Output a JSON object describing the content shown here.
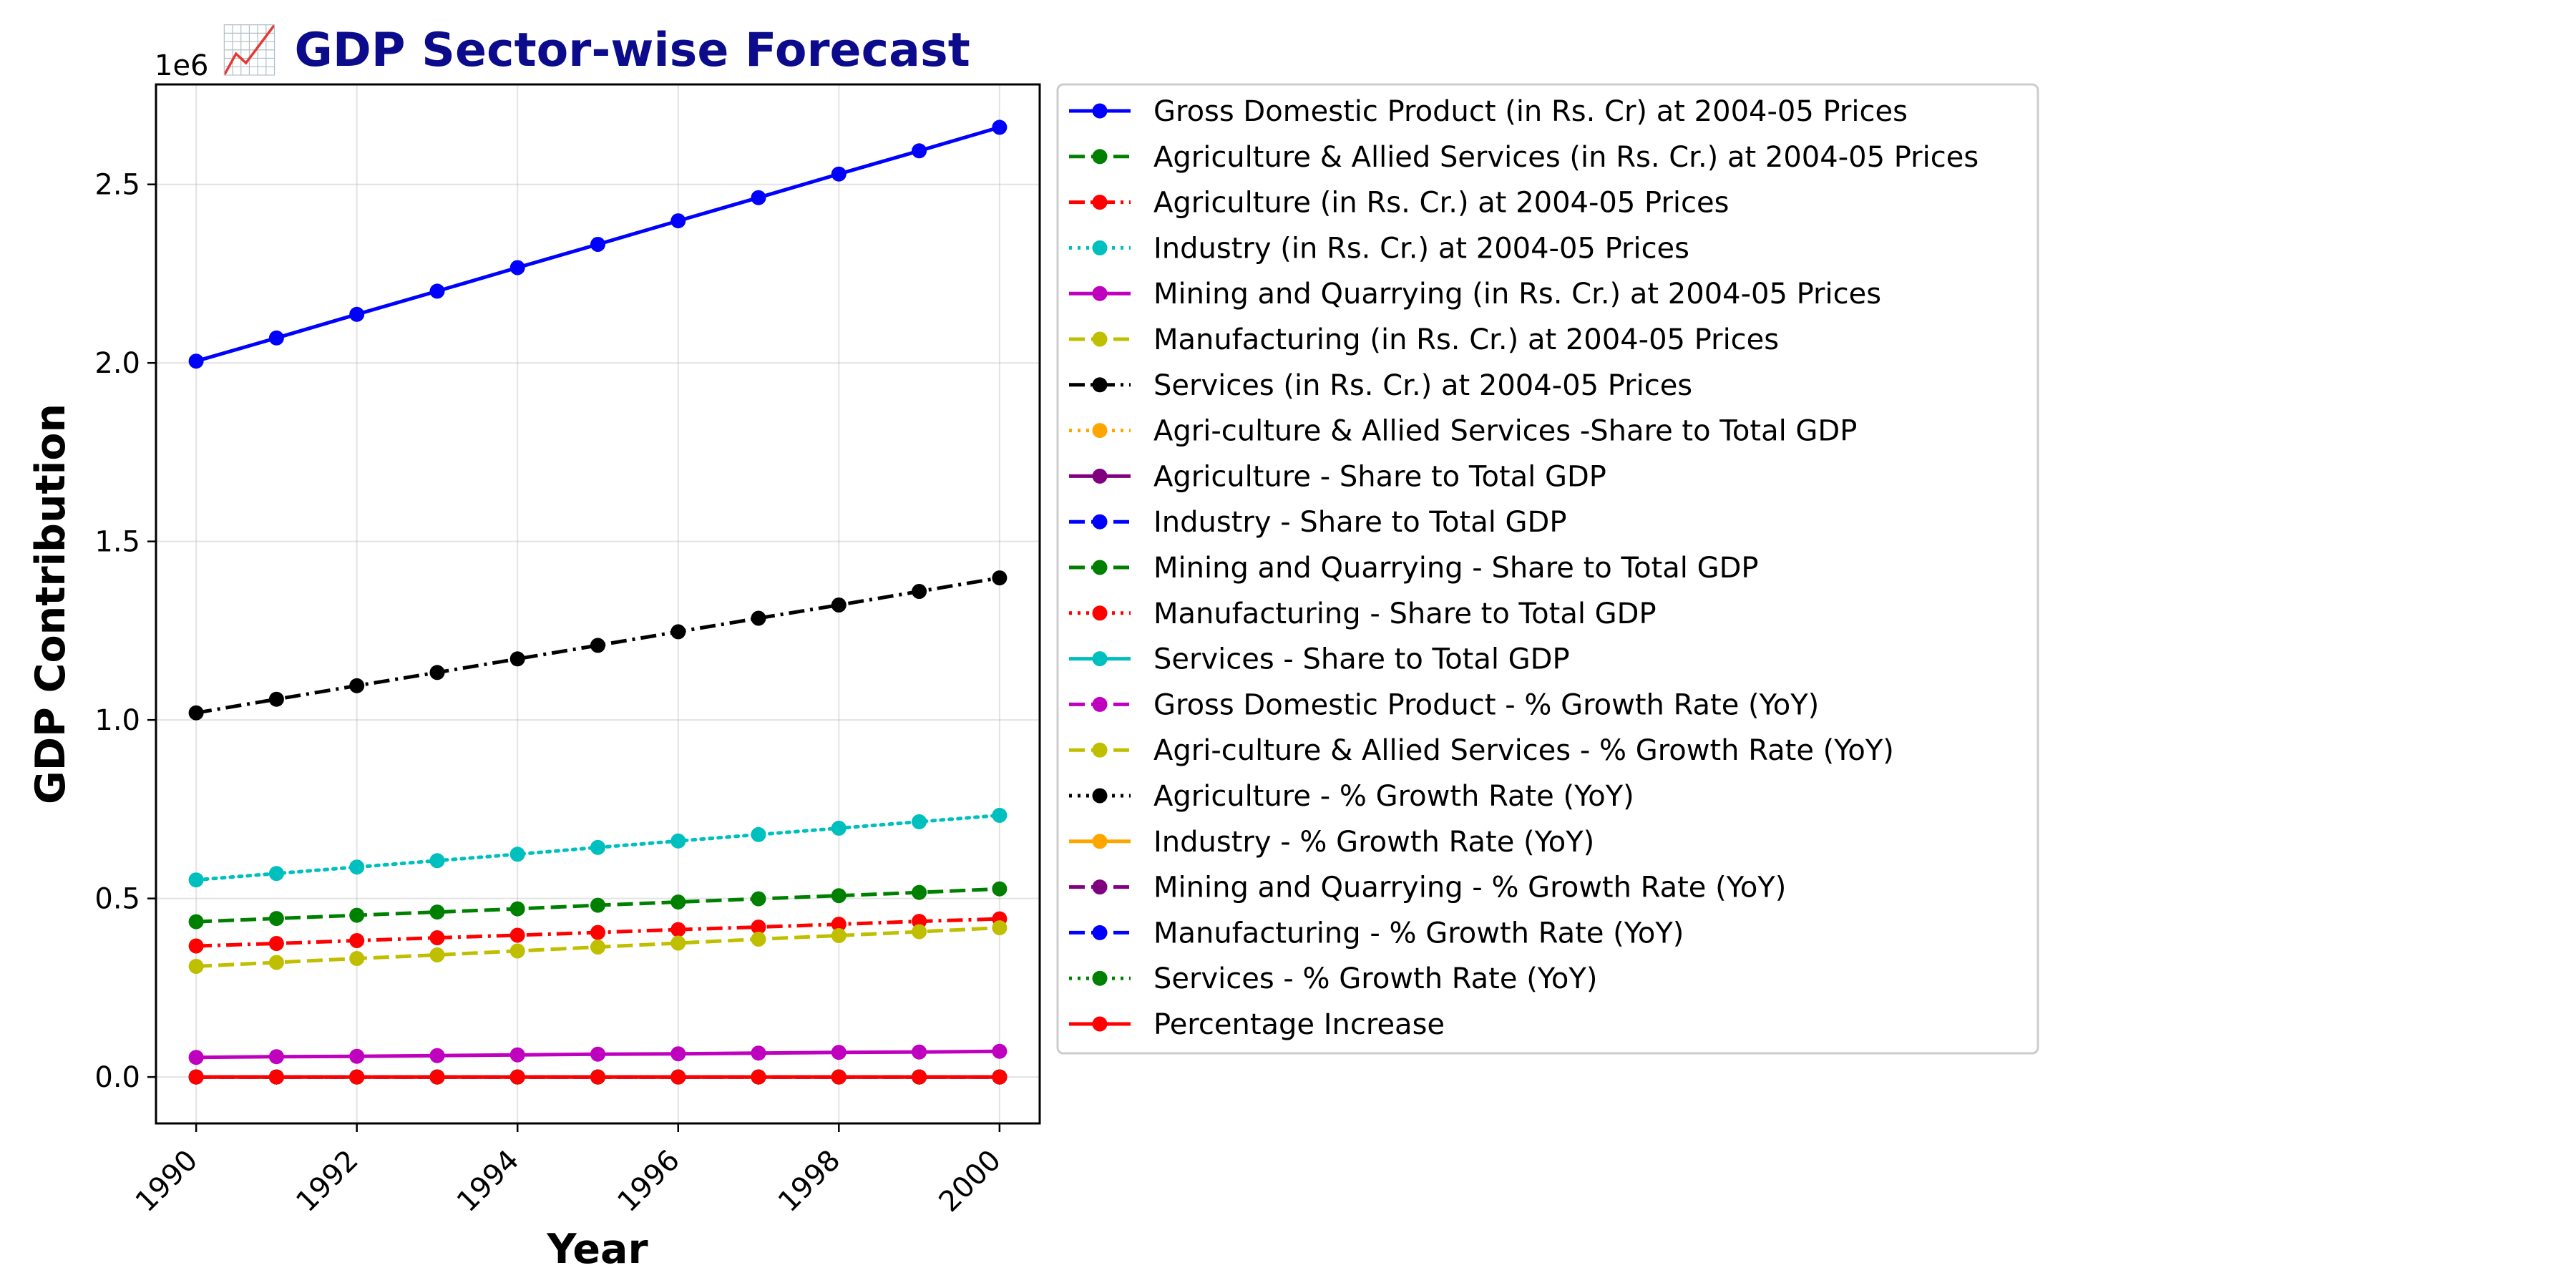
{
  "chart_data": {
    "type": "line",
    "title": "📈 GDP Sector-wise Forecast",
    "title_color": "#0b0b8c",
    "xlabel": "Year",
    "ylabel": "GDP Contribution",
    "y_offset_label": "1e6",
    "y_scale": 1000000,
    "xlim": [
      1989.5,
      2000.5
    ],
    "ylim": [
      -0.13,
      2.78
    ],
    "x_ticks": [
      1990,
      1992,
      1994,
      1996,
      1998,
      2000
    ],
    "y_ticks": [
      "0.0",
      "0.5",
      "1.0",
      "1.5",
      "2.0",
      "2.5"
    ],
    "grid": true,
    "legend_position": "outside right, upper",
    "x": [
      1990,
      1991,
      1992,
      1993,
      1994,
      1995,
      1996,
      1997,
      1998,
      1999,
      2000
    ],
    "series": [
      {
        "name": "Gross Domestic Product (in Rs. Cr) at 2004-05 Prices",
        "color": "#0000ff",
        "linestyle": "solid",
        "values": [
          2005000,
          2070000,
          2136000,
          2201000,
          2267000,
          2332000,
          2398000,
          2463000,
          2529000,
          2594000,
          2660000
        ]
      },
      {
        "name": "Agriculture & Allied Services (in Rs. Cr.) at 2004-05 Prices",
        "color": "#008000",
        "linestyle": "dashed",
        "values": [
          435000,
          444000,
          453000,
          462000,
          471000,
          481000,
          490000,
          499000,
          508000,
          517000,
          527000
        ]
      },
      {
        "name": "Agriculture (in Rs. Cr.) at 2004-05 Prices",
        "color": "#ff0000",
        "linestyle": "dashdot",
        "values": [
          367000,
          374000,
          382000,
          390000,
          397000,
          405000,
          413000,
          420000,
          428000,
          436000,
          443000
        ]
      },
      {
        "name": "Industry (in Rs. Cr.) at 2004-05 Prices",
        "color": "#00bfbf",
        "linestyle": "dotted",
        "values": [
          552000,
          570000,
          588000,
          606000,
          624000,
          643000,
          661000,
          679000,
          697000,
          715000,
          733000
        ]
      },
      {
        "name": "Mining and Quarrying (in Rs. Cr.) at 2004-05 Prices",
        "color": "#bf00bf",
        "linestyle": "solid",
        "values": [
          55000,
          57000,
          58000,
          60000,
          62000,
          64000,
          65000,
          67000,
          69000,
          70000,
          72000
        ]
      },
      {
        "name": "Manufacturing (in Rs. Cr.) at 2004-05 Prices",
        "color": "#bfbf00",
        "linestyle": "dashed",
        "values": [
          310000,
          321000,
          332000,
          342000,
          353000,
          364000,
          375000,
          386000,
          396000,
          407000,
          418000
        ]
      },
      {
        "name": "Services (in Rs. Cr.) at 2004-05 Prices",
        "color": "#000000",
        "linestyle": "dashdot",
        "values": [
          1020000,
          1058000,
          1096000,
          1133000,
          1171000,
          1209000,
          1247000,
          1285000,
          1322000,
          1360000,
          1398000
        ]
      },
      {
        "name": "Agri-culture & Allied Services -Share to Total GDP",
        "color": "#ffa500",
        "linestyle": "dotted",
        "values": [
          21,
          21,
          21,
          21,
          21,
          21,
          21,
          21,
          20,
          20,
          20
        ]
      },
      {
        "name": "Agriculture - Share to Total GDP",
        "color": "#800080",
        "linestyle": "solid",
        "values": [
          18,
          18,
          18,
          18,
          18,
          17,
          17,
          17,
          17,
          17,
          17
        ]
      },
      {
        "name": "Industry - Share to Total GDP",
        "color": "#0000ff",
        "linestyle": "dashed",
        "values": [
          28,
          28,
          28,
          28,
          28,
          28,
          28,
          28,
          28,
          28,
          28
        ]
      },
      {
        "name": "Mining and Quarrying - Share to Total GDP",
        "color": "#008000",
        "linestyle": "dashed",
        "values": [
          3,
          3,
          3,
          3,
          3,
          3,
          3,
          3,
          3,
          3,
          3
        ]
      },
      {
        "name": "Manufacturing - Share to Total GDP",
        "color": "#ff0000",
        "linestyle": "dotted",
        "values": [
          15,
          15,
          15,
          16,
          16,
          16,
          16,
          16,
          16,
          16,
          16
        ]
      },
      {
        "name": "Services - Share to Total GDP",
        "color": "#00bfbf",
        "linestyle": "solid",
        "values": [
          51,
          51,
          51,
          51,
          52,
          52,
          52,
          52,
          52,
          52,
          53
        ]
      },
      {
        "name": "Gross Domestic Product - % Growth Rate (YoY)",
        "color": "#bf00bf",
        "linestyle": "dashed",
        "values": [
          3,
          3,
          3,
          3,
          3,
          3,
          3,
          3,
          3,
          3,
          3
        ]
      },
      {
        "name": "Agri-culture & Allied Services - % Growth Rate (YoY)",
        "color": "#bfbf00",
        "linestyle": "dashed",
        "values": [
          2,
          2,
          2,
          2,
          2,
          2,
          2,
          2,
          2,
          2,
          2
        ]
      },
      {
        "name": "Agriculture - % Growth Rate (YoY)",
        "color": "#000000",
        "linestyle": "dotted",
        "values": [
          2,
          2,
          2,
          2,
          2,
          2,
          2,
          2,
          2,
          2,
          2
        ]
      },
      {
        "name": "Industry - % Growth Rate (YoY)",
        "color": "#ffa500",
        "linestyle": "solid",
        "values": [
          3,
          3,
          3,
          3,
          3,
          3,
          3,
          3,
          3,
          3,
          3
        ]
      },
      {
        "name": "Mining and Quarrying - % Growth Rate (YoY)",
        "color": "#800080",
        "linestyle": "dashed",
        "values": [
          3,
          3,
          3,
          3,
          3,
          3,
          3,
          3,
          3,
          3,
          3
        ]
      },
      {
        "name": "Manufacturing - % Growth Rate (YoY)",
        "color": "#0000ff",
        "linestyle": "dashed",
        "values": [
          3,
          3,
          3,
          3,
          3,
          3,
          3,
          3,
          3,
          3,
          3
        ]
      },
      {
        "name": "Services - % Growth Rate (YoY)",
        "color": "#008000",
        "linestyle": "dotted",
        "values": [
          4,
          4,
          4,
          4,
          4,
          4,
          4,
          4,
          4,
          4,
          4
        ]
      },
      {
        "name": "Percentage Increase",
        "color": "#ff0000",
        "linestyle": "solid",
        "values": [
          0,
          0,
          0,
          0,
          0,
          0,
          0,
          0,
          0,
          0,
          0
        ]
      }
    ]
  }
}
